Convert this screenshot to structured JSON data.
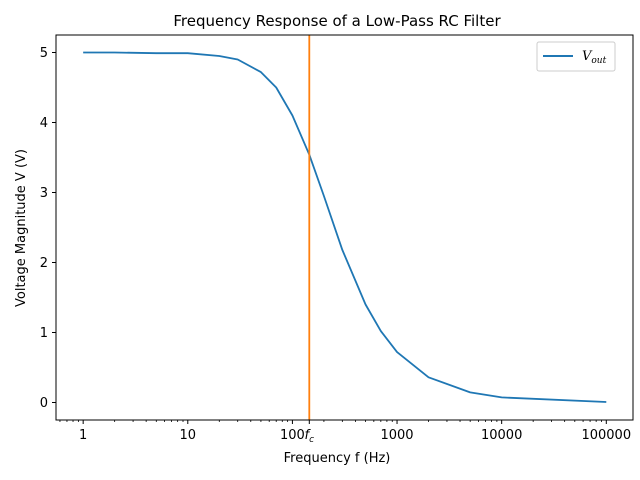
{
  "chart_data": {
    "type": "line",
    "title": "Frequency Response of a Low-Pass RC Filter",
    "xlabel": "Frequency f (Hz)",
    "ylabel": "Voltage Magnitude V (V)",
    "xscale": "log",
    "xlim": [
      0.55,
      180000
    ],
    "ylim": [
      -0.25,
      5.25
    ],
    "x_ticks": [
      {
        "value": 1,
        "label": "1"
      },
      {
        "value": 10,
        "label": "10"
      },
      {
        "value": 100,
        "label": "100"
      },
      {
        "value": 1000,
        "label": "1000"
      },
      {
        "value": 10000,
        "label": "10000"
      },
      {
        "value": 100000,
        "label": "100000"
      }
    ],
    "cutoff_tick": {
      "value": 145,
      "label_main": "f",
      "label_sub": "c"
    },
    "y_ticks": [
      0,
      1,
      2,
      3,
      4,
      5
    ],
    "series": [
      {
        "name_main": "V",
        "name_sub": "out",
        "color": "#1f77b4",
        "points": [
          [
            1,
            5.0
          ],
          [
            2,
            5.0
          ],
          [
            5,
            4.99
          ],
          [
            10,
            4.99
          ],
          [
            20,
            4.95
          ],
          [
            30,
            4.9
          ],
          [
            50,
            4.72
          ],
          [
            70,
            4.5
          ],
          [
            100,
            4.1
          ],
          [
            145,
            3.54
          ],
          [
            200,
            2.95
          ],
          [
            300,
            2.18
          ],
          [
            500,
            1.4
          ],
          [
            700,
            1.02
          ],
          [
            1000,
            0.72
          ],
          [
            2000,
            0.36
          ],
          [
            5000,
            0.145
          ],
          [
            10000,
            0.073
          ],
          [
            100000,
            0.007
          ]
        ]
      }
    ],
    "vline": {
      "x": 145,
      "color": "#ff7f0e"
    },
    "grid": false,
    "legend": "top-right"
  }
}
